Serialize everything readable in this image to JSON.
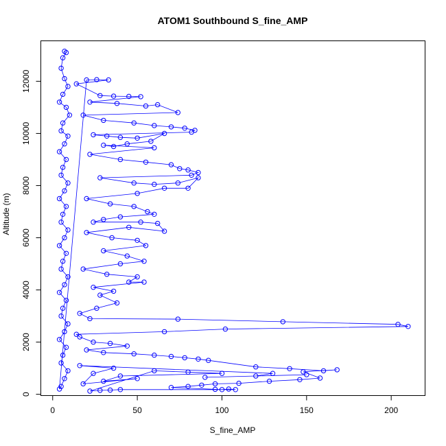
{
  "chart_data": {
    "type": "scatter",
    "title": "ATOM1 Southbound S_fine_AMP",
    "xlabel": "S_fine_AMP",
    "ylabel": "Altitude (m)",
    "xlim": [
      -7,
      220
    ],
    "ylim": [
      -50,
      13550
    ],
    "xticks": [
      0,
      50,
      100,
      150,
      200
    ],
    "yticks": [
      0,
      2000,
      4000,
      6000,
      8000,
      10000,
      12000
    ],
    "grid": false,
    "legend": "none",
    "color": "#0000ff",
    "series": [
      {
        "values": [
          [
            7,
            13150
          ],
          [
            8,
            13100
          ],
          [
            6,
            12900
          ],
          [
            5,
            12500
          ],
          [
            7,
            12100
          ],
          [
            9,
            11800
          ],
          [
            6,
            11500
          ],
          [
            4,
            11200
          ],
          [
            8,
            11000
          ],
          [
            10,
            10700
          ],
          [
            6,
            10400
          ],
          [
            5,
            10100
          ],
          [
            9,
            9900
          ],
          [
            7,
            9600
          ],
          [
            4,
            9300
          ],
          [
            8,
            9000
          ],
          [
            6,
            8700
          ],
          [
            5,
            8400
          ],
          [
            9,
            8100
          ],
          [
            7,
            7800
          ],
          [
            4,
            7500
          ],
          [
            8,
            7200
          ],
          [
            6,
            6900
          ],
          [
            5,
            6600
          ],
          [
            9,
            6300
          ],
          [
            7,
            6000
          ],
          [
            4,
            5700
          ],
          [
            8,
            5400
          ],
          [
            6,
            5100
          ],
          [
            5,
            4800
          ],
          [
            9,
            4500
          ],
          [
            7,
            4200
          ],
          [
            4,
            3900
          ],
          [
            8,
            3600
          ],
          [
            6,
            3300
          ],
          [
            5,
            3000
          ],
          [
            9,
            2700
          ],
          [
            7,
            2400
          ],
          [
            4,
            2100
          ],
          [
            8,
            1800
          ],
          [
            6,
            1500
          ],
          [
            5,
            1200
          ],
          [
            9,
            900
          ],
          [
            7,
            600
          ],
          [
            5,
            300
          ],
          [
            4,
            200
          ],
          [
            20,
            12050
          ],
          [
            26,
            12060
          ],
          [
            33,
            12050
          ],
          [
            14,
            11900
          ],
          [
            28,
            11450
          ],
          [
            36,
            11430
          ],
          [
            45,
            11420
          ],
          [
            52,
            11410
          ],
          [
            22,
            11200
          ],
          [
            38,
            11150
          ],
          [
            55,
            11050
          ],
          [
            62,
            11100
          ],
          [
            74,
            10800
          ],
          [
            18,
            10700
          ],
          [
            30,
            10500
          ],
          [
            48,
            10400
          ],
          [
            60,
            10300
          ],
          [
            70,
            10250
          ],
          [
            78,
            10200
          ],
          [
            84,
            10120
          ],
          [
            82,
            10050
          ],
          [
            24,
            9950
          ],
          [
            32,
            9900
          ],
          [
            40,
            9850
          ],
          [
            50,
            9820
          ],
          [
            66,
            10000
          ],
          [
            58,
            9700
          ],
          [
            44,
            9600
          ],
          [
            36,
            9500
          ],
          [
            30,
            9550
          ],
          [
            60,
            9450
          ],
          [
            22,
            9200
          ],
          [
            40,
            9000
          ],
          [
            55,
            8900
          ],
          [
            70,
            8800
          ],
          [
            75,
            8650
          ],
          [
            80,
            8600
          ],
          [
            86,
            8500
          ],
          [
            82,
            8400
          ],
          [
            28,
            8300
          ],
          [
            48,
            8100
          ],
          [
            60,
            8050
          ],
          [
            74,
            8100
          ],
          [
            86,
            8300
          ],
          [
            80,
            7900
          ],
          [
            66,
            7900
          ],
          [
            50,
            7700
          ],
          [
            20,
            7500
          ],
          [
            34,
            7300
          ],
          [
            48,
            7200
          ],
          [
            56,
            7000
          ],
          [
            60,
            6900
          ],
          [
            40,
            6800
          ],
          [
            30,
            6700
          ],
          [
            24,
            6600
          ],
          [
            52,
            6600
          ],
          [
            62,
            6550
          ],
          [
            66,
            6250
          ],
          [
            45,
            6400
          ],
          [
            20,
            6200
          ],
          [
            35,
            6000
          ],
          [
            50,
            5900
          ],
          [
            55,
            5700
          ],
          [
            30,
            5500
          ],
          [
            44,
            5300
          ],
          [
            54,
            5100
          ],
          [
            40,
            5000
          ],
          [
            18,
            4800
          ],
          [
            32,
            4600
          ],
          [
            50,
            4500
          ],
          [
            45,
            4300
          ],
          [
            54,
            4300
          ],
          [
            24,
            4100
          ],
          [
            36,
            3950
          ],
          [
            28,
            3800
          ],
          [
            38,
            3500
          ],
          [
            26,
            3300
          ],
          [
            16,
            3100
          ],
          [
            22,
            2900
          ],
          [
            74,
            2880
          ],
          [
            136,
            2780
          ],
          [
            204,
            2680
          ],
          [
            210,
            2600
          ],
          [
            102,
            2500
          ],
          [
            66,
            2400
          ],
          [
            14,
            2300
          ],
          [
            16,
            2200
          ],
          [
            24,
            2000
          ],
          [
            34,
            1950
          ],
          [
            44,
            1850
          ],
          [
            20,
            1700
          ],
          [
            30,
            1600
          ],
          [
            48,
            1550
          ],
          [
            60,
            1500
          ],
          [
            70,
            1450
          ],
          [
            78,
            1400
          ],
          [
            86,
            1350
          ],
          [
            92,
            1300
          ],
          [
            120,
            1050
          ],
          [
            140,
            980
          ],
          [
            160,
            900
          ],
          [
            168,
            940
          ],
          [
            148,
            860
          ],
          [
            158,
            620
          ],
          [
            146,
            560
          ],
          [
            128,
            500
          ],
          [
            110,
            420
          ],
          [
            96,
            400
          ],
          [
            88,
            350
          ],
          [
            80,
            300
          ],
          [
            70,
            260
          ],
          [
            96,
            190
          ],
          [
            100,
            180
          ],
          [
            104,
            200
          ],
          [
            108,
            180
          ],
          [
            40,
            180
          ],
          [
            34,
            160
          ],
          [
            28,
            150
          ],
          [
            22,
            120
          ],
          [
            60,
            900
          ],
          [
            80,
            850
          ],
          [
            100,
            800
          ],
          [
            40,
            700
          ],
          [
            30,
            500
          ],
          [
            50,
            600
          ],
          [
            18,
            400
          ],
          [
            24,
            800
          ],
          [
            36,
            1000
          ],
          [
            16,
            1100
          ],
          [
            130,
            800
          ],
          [
            120,
            700
          ],
          [
            150,
            750
          ],
          [
            90,
            650
          ]
        ]
      }
    ]
  }
}
